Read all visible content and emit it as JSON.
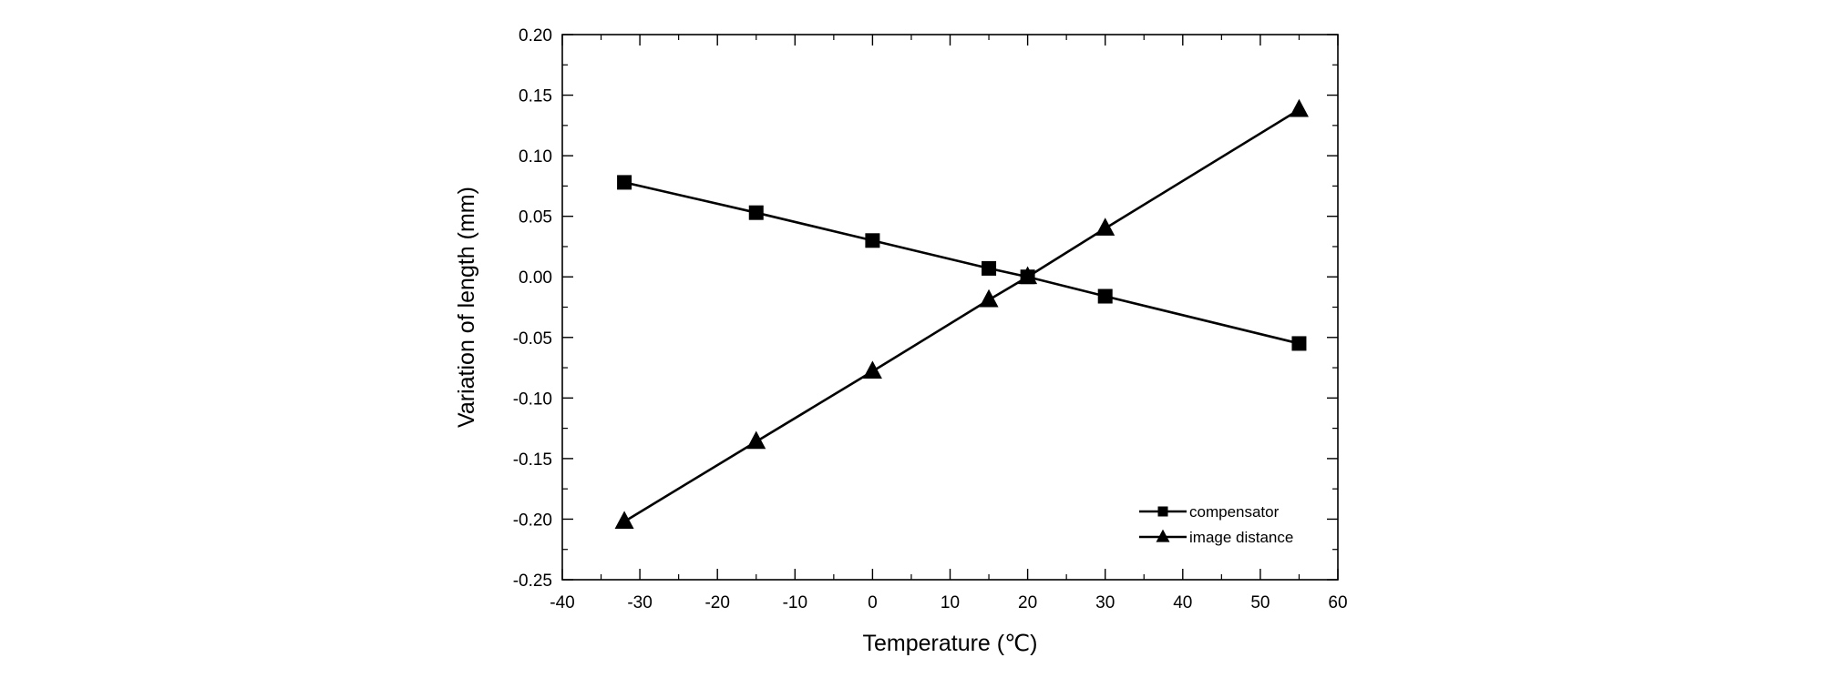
{
  "chart_data": {
    "type": "line",
    "title": "",
    "xlabel": "Temperature (℃)",
    "ylabel": "Variation of length (mm)",
    "xlim": [
      -40,
      60
    ],
    "ylim": [
      -0.25,
      0.2
    ],
    "xticks": [
      -40,
      -30,
      -20,
      -10,
      0,
      10,
      20,
      30,
      40,
      50,
      60
    ],
    "yticks": [
      -0.25,
      -0.2,
      -0.15,
      -0.1,
      -0.05,
      0.0,
      0.05,
      0.1,
      0.15,
      0.2
    ],
    "grid": false,
    "legend_position": "bottom-right",
    "series": [
      {
        "name": "compensator",
        "marker": "square",
        "color": "#000000",
        "x": [
          -32,
          -15,
          0,
          15,
          20,
          30,
          55
        ],
        "y": [
          0.078,
          0.053,
          0.03,
          0.007,
          0.0,
          -0.016,
          -0.055
        ]
      },
      {
        "name": "image distance",
        "marker": "triangle",
        "color": "#000000",
        "x": [
          -32,
          -15,
          0,
          15,
          20,
          30,
          55
        ],
        "y": [
          -0.202,
          -0.136,
          -0.078,
          -0.019,
          0.0,
          0.04,
          0.138
        ]
      }
    ]
  }
}
